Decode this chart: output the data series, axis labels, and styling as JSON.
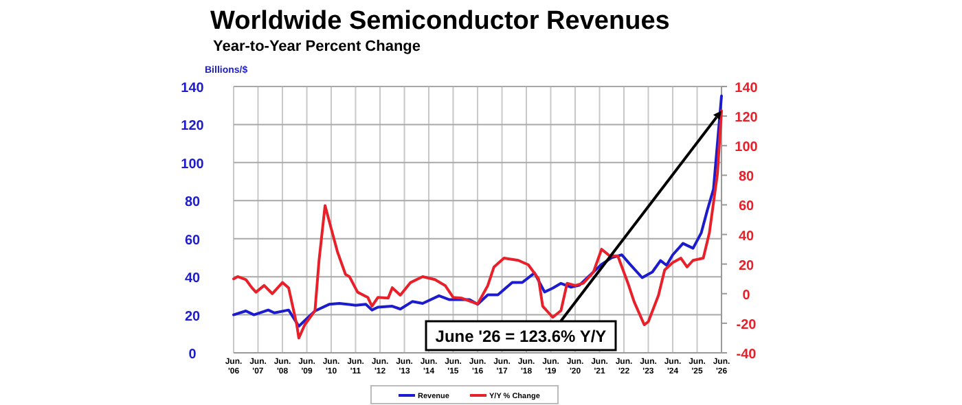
{
  "chart_data": {
    "type": "line",
    "title": "Worldwide Semiconductor Revenues",
    "subtitle": "Year-to-Year Percent Change",
    "ylabel": "Billions/$",
    "xlim": [
      "2006-06",
      "2026-06"
    ],
    "xticks": [
      {
        "value": "2006-06",
        "label": "Jun.\n'06"
      },
      {
        "value": "2007-06",
        "label": "Jun.\n'07"
      },
      {
        "value": "2008-06",
        "label": "Jun.\n'08"
      },
      {
        "value": "2009-06",
        "label": "Jun.\n'09"
      },
      {
        "value": "2010-06",
        "label": "Jun.\n'10"
      },
      {
        "value": "2011-06",
        "label": "Jun.\n'11"
      },
      {
        "value": "2012-06",
        "label": "Jun.\n'12"
      },
      {
        "value": "2013-06",
        "label": "Jun.\n'13"
      },
      {
        "value": "2014-06",
        "label": "Jun.\n'14"
      },
      {
        "value": "2015-06",
        "label": "Jun.\n'15"
      },
      {
        "value": "2016-06",
        "label": "Jun.\n'16"
      },
      {
        "value": "2017-06",
        "label": "Jun.\n'17"
      },
      {
        "value": "2018-06",
        "label": "Jun.\n'18"
      },
      {
        "value": "2019-06",
        "label": "Jun.\n'19"
      },
      {
        "value": "2020-06",
        "label": "Jun.\n'20"
      },
      {
        "value": "2021-06",
        "label": "Jun.\n'21"
      },
      {
        "value": "2022-06",
        "label": "Jun.\n'22"
      },
      {
        "value": "2023-06",
        "label": "Jun.\n'23"
      },
      {
        "value": "2024-06",
        "label": "Jun.\n'24"
      },
      {
        "value": "2025-06",
        "label": "Jun.\n'25"
      },
      {
        "value": "2026-06",
        "label": "Jun.\n'26"
      }
    ],
    "ylim": [
      0,
      140
    ],
    "yticks": [
      0,
      20,
      40,
      60,
      80,
      100,
      120,
      140
    ],
    "y2lim": [
      -40,
      140
    ],
    "y2ticks": [
      -40,
      -20,
      0,
      20,
      40,
      60,
      80,
      100,
      120,
      140
    ],
    "grid": true,
    "legend": "bottom",
    "series": [
      {
        "name": "Revenue",
        "color": "#1c1ccc",
        "x": [
          "2006-06",
          "2006-12",
          "2007-04",
          "2007-11",
          "2008-02",
          "2008-09",
          "2009-02",
          "2009-10",
          "2010-05",
          "2010-10",
          "2011-06",
          "2011-11",
          "2012-02",
          "2012-05",
          "2012-12",
          "2013-04",
          "2013-10",
          "2014-03",
          "2014-11",
          "2015-04",
          "2016-02",
          "2016-06",
          "2016-11",
          "2017-04",
          "2017-11",
          "2018-04",
          "2018-10",
          "2019-03",
          "2019-07",
          "2019-11",
          "2020-04",
          "2020-08",
          "2020-12",
          "2021-07",
          "2021-12",
          "2022-05",
          "2022-09",
          "2023-03",
          "2023-08",
          "2023-12",
          "2024-03",
          "2024-06",
          "2024-11",
          "2025-04",
          "2025-08",
          "2025-11",
          "2026-02",
          "2026-06"
        ],
        "values": [
          20,
          22,
          20,
          22.5,
          21,
          22.5,
          14,
          22,
          25.5,
          26,
          25,
          25.5,
          22.5,
          24,
          24.5,
          23,
          27,
          26,
          30,
          28,
          28,
          25.5,
          30.5,
          30.5,
          37,
          37,
          42,
          32,
          34,
          36.5,
          34.5,
          35.5,
          39.5,
          46.5,
          50,
          51.5,
          46.5,
          39.5,
          42.5,
          48.5,
          46,
          51.5,
          57.5,
          55,
          63,
          75,
          86,
          135
        ]
      },
      {
        "name": "Y/Y % Change",
        "color": "#e8202a",
        "axis": "y2",
        "x": [
          "2006-06",
          "2006-08",
          "2006-12",
          "2007-03",
          "2007-05",
          "2007-09",
          "2008-01",
          "2008-06",
          "2008-09",
          "2009-01",
          "2009-02",
          "2009-05",
          "2009-10",
          "2009-12",
          "2010-03",
          "2010-06",
          "2010-09",
          "2011-01",
          "2011-03",
          "2011-07",
          "2011-12",
          "2012-02",
          "2012-05",
          "2012-10",
          "2012-12",
          "2013-04",
          "2013-09",
          "2014-03",
          "2014-09",
          "2015-02",
          "2015-06",
          "2015-10",
          "2016-06",
          "2016-11",
          "2017-02",
          "2017-07",
          "2018-02",
          "2018-07",
          "2018-12",
          "2019-02",
          "2019-07",
          "2019-11",
          "2020-02",
          "2020-06",
          "2020-10",
          "2021-03",
          "2021-07",
          "2021-11",
          "2022-03",
          "2022-08",
          "2022-11",
          "2023-04",
          "2023-06",
          "2023-11",
          "2024-02",
          "2024-06",
          "2024-10",
          "2025-01",
          "2025-04",
          "2025-09",
          "2025-12",
          "2026-04",
          "2026-06"
        ],
        "values": [
          10,
          11.5,
          9.5,
          4,
          1,
          5.5,
          0,
          7.5,
          4,
          -21,
          -30,
          -21,
          -11.5,
          22.5,
          59.5,
          44,
          28.5,
          13,
          11.5,
          1,
          -2.5,
          -8.5,
          -2.5,
          -3,
          4,
          -1,
          7.5,
          11.5,
          9.5,
          5.5,
          -2.5,
          -3,
          -7,
          5.5,
          18,
          24,
          22.5,
          19.5,
          10,
          -8.5,
          -16,
          -11.5,
          7,
          5.5,
          7,
          14.5,
          30,
          25.5,
          25.5,
          7,
          -5.5,
          -21,
          -19,
          -1,
          16,
          21,
          24,
          18,
          22.5,
          24,
          41,
          81,
          123.6
        ]
      }
    ],
    "annotations": [
      {
        "text": "June '26 = 123.6% Y/Y",
        "x": "2026-06",
        "y": 123.6
      }
    ]
  }
}
